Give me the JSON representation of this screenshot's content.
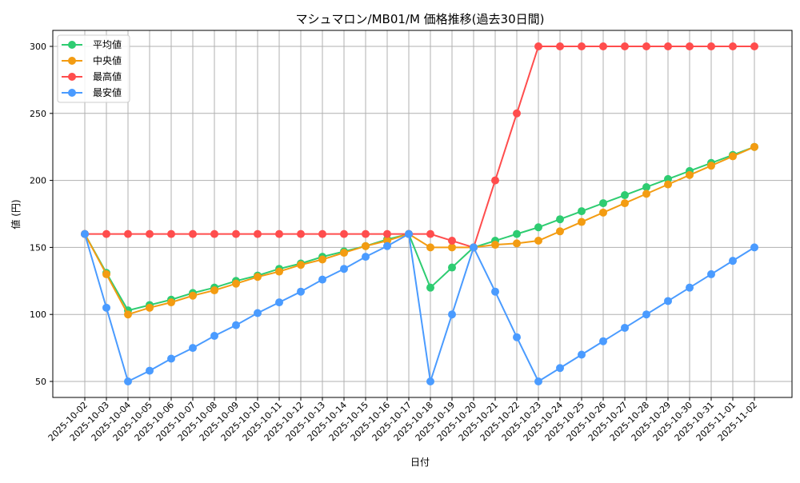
{
  "chart_data": {
    "type": "line",
    "title": "マシュマロン/MB01/M 価格推移(過去30日間)",
    "xlabel": "日付",
    "ylabel": "値 (円)",
    "ylim": [
      37,
      312
    ],
    "yticks": [
      50,
      100,
      150,
      200,
      250,
      300
    ],
    "grid": true,
    "legend_position": "upper left",
    "categories": [
      "2025-10-02",
      "2025-10-03",
      "2025-10-04",
      "2025-10-05",
      "2025-10-06",
      "2025-10-07",
      "2025-10-08",
      "2025-10-09",
      "2025-10-10",
      "2025-10-11",
      "2025-10-12",
      "2025-10-13",
      "2025-10-14",
      "2025-10-15",
      "2025-10-16",
      "2025-10-17",
      "2025-10-18",
      "2025-10-19",
      "2025-10-20",
      "2025-10-21",
      "2025-10-22",
      "2025-10-23",
      "2025-10-24",
      "2025-10-25",
      "2025-10-26",
      "2025-10-27",
      "2025-10-28",
      "2025-10-29",
      "2025-10-30",
      "2025-10-31",
      "2025-11-01",
      "2025-11-02"
    ],
    "series": [
      {
        "name": "平均値",
        "color": "#2ecc71",
        "values": [
          160,
          131,
          103,
          107,
          111,
          116,
          120,
          125,
          129,
          134,
          138,
          143,
          147,
          151,
          156,
          160,
          120,
          135,
          150,
          155,
          160,
          165,
          171,
          177,
          183,
          189,
          195,
          201,
          207,
          213,
          219,
          225
        ]
      },
      {
        "name": "中央値",
        "color": "#f39c12",
        "values": [
          160,
          130,
          100,
          105,
          109,
          114,
          118,
          123,
          128,
          132,
          137,
          141,
          146,
          151,
          155,
          160,
          150,
          150,
          150,
          152,
          153,
          155,
          162,
          169,
          176,
          183,
          190,
          197,
          204,
          211,
          218,
          225
        ]
      },
      {
        "name": "最高値",
        "color": "#ff4d4d",
        "values": [
          160,
          160,
          160,
          160,
          160,
          160,
          160,
          160,
          160,
          160,
          160,
          160,
          160,
          160,
          160,
          160,
          160,
          155,
          150,
          200,
          250,
          300,
          300,
          300,
          300,
          300,
          300,
          300,
          300,
          300,
          300,
          300
        ]
      },
      {
        "name": "最安値",
        "color": "#4a9bff",
        "values": [
          160,
          105,
          50,
          58,
          67,
          75,
          84,
          92,
          101,
          109,
          117,
          126,
          134,
          143,
          151,
          160,
          50,
          100,
          150,
          117,
          83,
          50,
          60,
          70,
          80,
          90,
          100,
          110,
          120,
          130,
          140,
          150
        ]
      }
    ]
  }
}
